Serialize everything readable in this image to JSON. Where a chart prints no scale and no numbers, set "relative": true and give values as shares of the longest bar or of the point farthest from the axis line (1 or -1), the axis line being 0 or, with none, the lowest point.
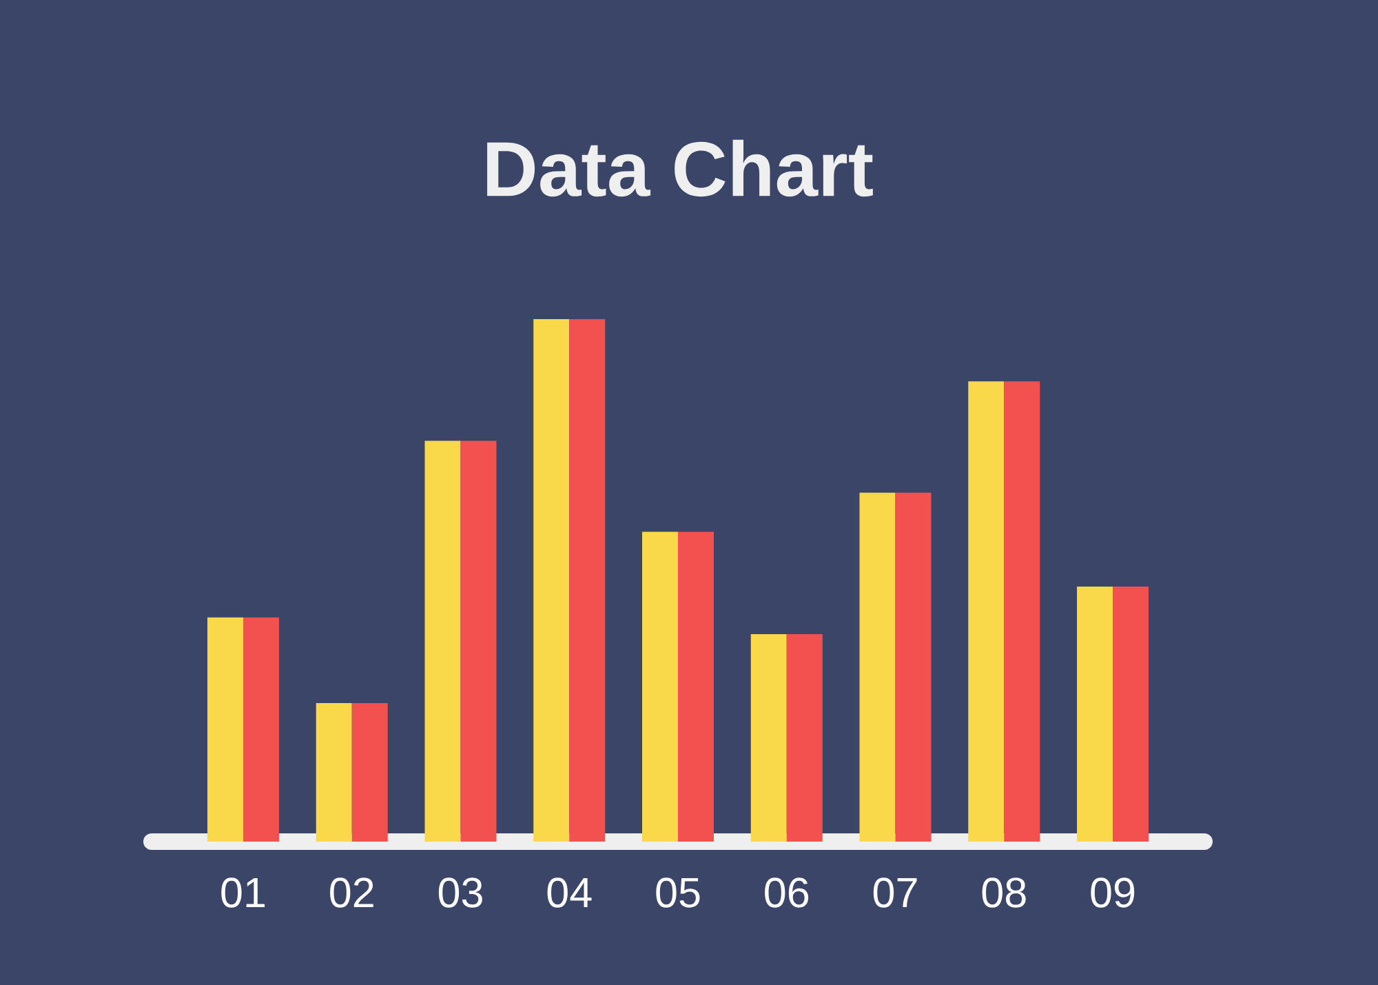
{
  "chart_data": {
    "type": "bar",
    "title": "Data Chart",
    "relative": true,
    "categories": [
      "01",
      "02",
      "03",
      "04",
      "05",
      "06",
      "07",
      "08",
      "09"
    ],
    "series": [
      {
        "color": "#f9d84a",
        "values": [
          0.429,
          0.265,
          0.767,
          1,
          0.593,
          0.397,
          0.668,
          0.881,
          0.488
        ]
      },
      {
        "color": "#f2514f",
        "values": [
          0.429,
          0.265,
          0.767,
          1,
          0.593,
          0.397,
          0.668,
          0.881,
          0.488
        ]
      }
    ]
  }
}
